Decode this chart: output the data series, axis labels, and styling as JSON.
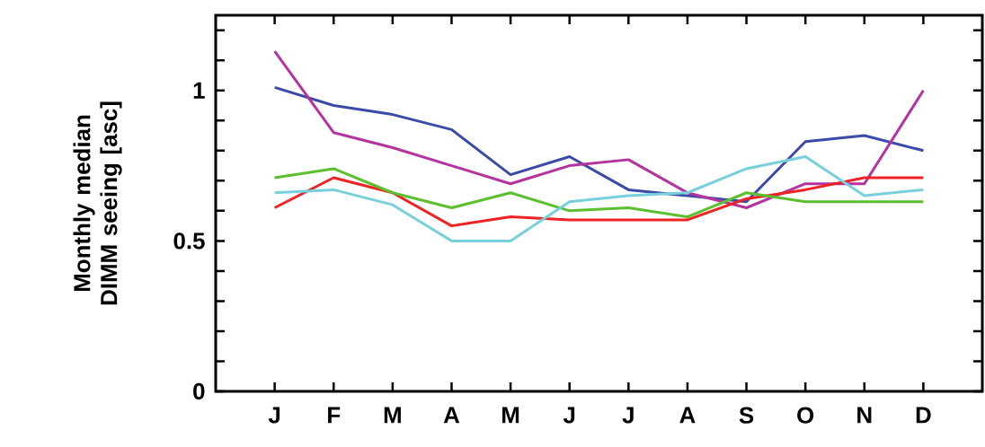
{
  "chart_data": {
    "type": "line",
    "ylabel": "Monthly median DIMM seeing [asc]",
    "categories": [
      "J",
      "F",
      "M",
      "A",
      "M",
      "J",
      "J",
      "A",
      "S",
      "O",
      "N",
      "D"
    ],
    "series": [
      {
        "color": "#3b4aa8",
        "values": [
          1.01,
          0.95,
          0.92,
          0.87,
          0.72,
          0.78,
          0.67,
          0.65,
          0.63,
          0.83,
          0.85,
          0.8
        ]
      },
      {
        "color": "#b5339f",
        "values": [
          1.13,
          0.86,
          0.81,
          0.75,
          0.69,
          0.75,
          0.77,
          0.66,
          0.61,
          0.69,
          0.69,
          1.0
        ]
      },
      {
        "color": "#ee2222",
        "values": [
          0.61,
          0.71,
          0.66,
          0.55,
          0.58,
          0.57,
          0.57,
          0.57,
          0.64,
          0.67,
          0.71,
          0.71
        ]
      },
      {
        "color": "#5bbf2e",
        "values": [
          0.71,
          0.74,
          0.66,
          0.61,
          0.66,
          0.6,
          0.61,
          0.58,
          0.66,
          0.63,
          0.63,
          0.63
        ]
      },
      {
        "color": "#77d0dc",
        "values": [
          0.66,
          0.67,
          0.62,
          0.5,
          0.5,
          0.63,
          0.65,
          0.66,
          0.74,
          0.78,
          0.65,
          0.67
        ]
      }
    ],
    "ylim": [
      0,
      1.25
    ],
    "yticks": [
      0,
      {
        "value": 0.1,
        "label": null
      },
      {
        "value": 0.2,
        "label": null
      },
      {
        "value": 0.3,
        "label": null
      },
      {
        "value": 0.4,
        "label": null
      },
      0.5,
      {
        "value": 0.6,
        "label": null
      },
      {
        "value": 0.7,
        "label": null
      },
      {
        "value": 0.8,
        "label": null
      },
      {
        "value": 0.9,
        "label": null
      },
      1,
      {
        "value": 1.1,
        "label": null
      },
      {
        "value": 1.2,
        "label": null
      }
    ],
    "grid": false,
    "marker": "none",
    "line_style": "solid"
  }
}
